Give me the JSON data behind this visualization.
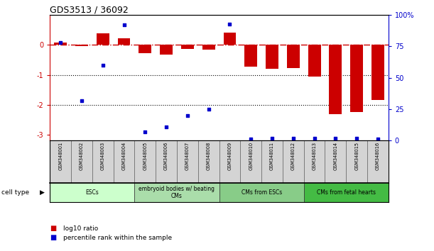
{
  "title": "GDS3513 / 36092",
  "samples": [
    "GSM348001",
    "GSM348002",
    "GSM348003",
    "GSM348004",
    "GSM348005",
    "GSM348006",
    "GSM348007",
    "GSM348008",
    "GSM348009",
    "GSM348010",
    "GSM348011",
    "GSM348012",
    "GSM348013",
    "GSM348014",
    "GSM348015",
    "GSM348016"
  ],
  "log10_ratio": [
    0.07,
    -0.04,
    0.38,
    0.22,
    -0.28,
    -0.32,
    -0.13,
    -0.16,
    0.42,
    -0.72,
    -0.8,
    -0.78,
    -1.05,
    -2.32,
    -2.25,
    -1.85
  ],
  "percentile_rank": [
    78,
    32,
    60,
    92,
    7,
    11,
    20,
    25,
    93,
    1,
    2,
    2,
    2,
    2,
    2,
    1
  ],
  "cell_types": [
    {
      "label": "ESCs",
      "start": 0,
      "end": 4,
      "color": "#ccffcc"
    },
    {
      "label": "embryoid bodies w/ beating\nCMs",
      "start": 4,
      "end": 8,
      "color": "#aaddaa"
    },
    {
      "label": "CMs from ESCs",
      "start": 8,
      "end": 12,
      "color": "#88cc88"
    },
    {
      "label": "CMs from fetal hearts",
      "start": 12,
      "end": 16,
      "color": "#44bb44"
    }
  ],
  "bar_color": "#cc0000",
  "dot_color": "#0000cc",
  "hline_color": "#cc0000",
  "dotted_line_color": "#000000",
  "ylim_left": [
    -3.2,
    1.0
  ],
  "ylim_right": [
    0,
    100
  ],
  "yticks_left": [
    -3,
    -2,
    -1,
    0
  ],
  "yticks_right": [
    0,
    25,
    50,
    75,
    100
  ],
  "ytick_labels_right": [
    "0",
    "25",
    "50",
    "75",
    "100%"
  ],
  "bar_width": 0.6
}
